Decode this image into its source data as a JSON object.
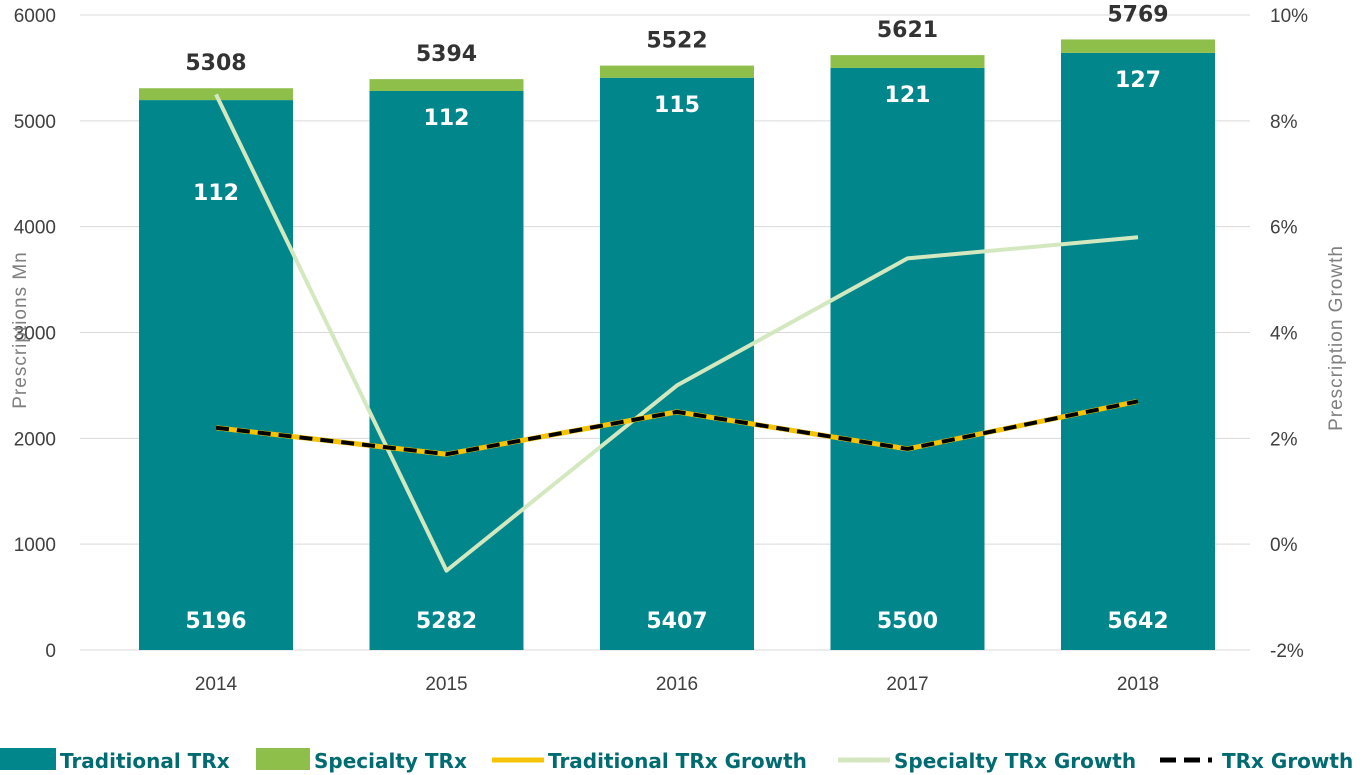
{
  "chart_data": {
    "type": "bar",
    "stacked": true,
    "categories": [
      "2014",
      "2015",
      "2016",
      "2017",
      "2018"
    ],
    "series": [
      {
        "name": "Traditional TRx",
        "kind": "bar",
        "axis": "left",
        "color": "#00868b",
        "values": [
          5196,
          5282,
          5407,
          5500,
          5642
        ]
      },
      {
        "name": "Specialty TRx",
        "kind": "bar",
        "axis": "left",
        "color": "#8dbf4a",
        "values": [
          112,
          112,
          115,
          121,
          127
        ]
      },
      {
        "name": "Traditional TRx Growth",
        "kind": "line",
        "axis": "right",
        "color": "#f5c400",
        "values": [
          2.2,
          1.7,
          2.5,
          1.8,
          2.7
        ]
      },
      {
        "name": "Specialty TRx Growth",
        "kind": "line",
        "axis": "right",
        "color": "#d4e8c0",
        "values": [
          8.5,
          -0.5,
          3.0,
          5.4,
          5.8
        ]
      },
      {
        "name": "TRx Growth",
        "kind": "line",
        "axis": "right",
        "color": "#000000",
        "dashed": true,
        "values": [
          2.2,
          1.7,
          2.5,
          1.8,
          2.7
        ]
      }
    ],
    "totals": [
      "5308",
      "5394",
      "5522",
      "5621",
      "5769"
    ],
    "traditional_labels": [
      "5196",
      "5282",
      "5407",
      "5500",
      "5642"
    ],
    "specialty_labels": [
      "112",
      "112",
      "115",
      "121",
      "127"
    ],
    "ylabel": "Prescriptions Mn",
    "y2label": "Prescription Growth",
    "ylim": [
      0,
      6000
    ],
    "y2lim": [
      -2,
      10
    ],
    "yticks": [
      "0",
      "1000",
      "2000",
      "3000",
      "4000",
      "5000",
      "6000"
    ],
    "y2ticks": [
      "-2%",
      "0%",
      "2%",
      "4%",
      "6%",
      "8%",
      "10%"
    ],
    "grid": true,
    "legend_position": "bottom"
  }
}
